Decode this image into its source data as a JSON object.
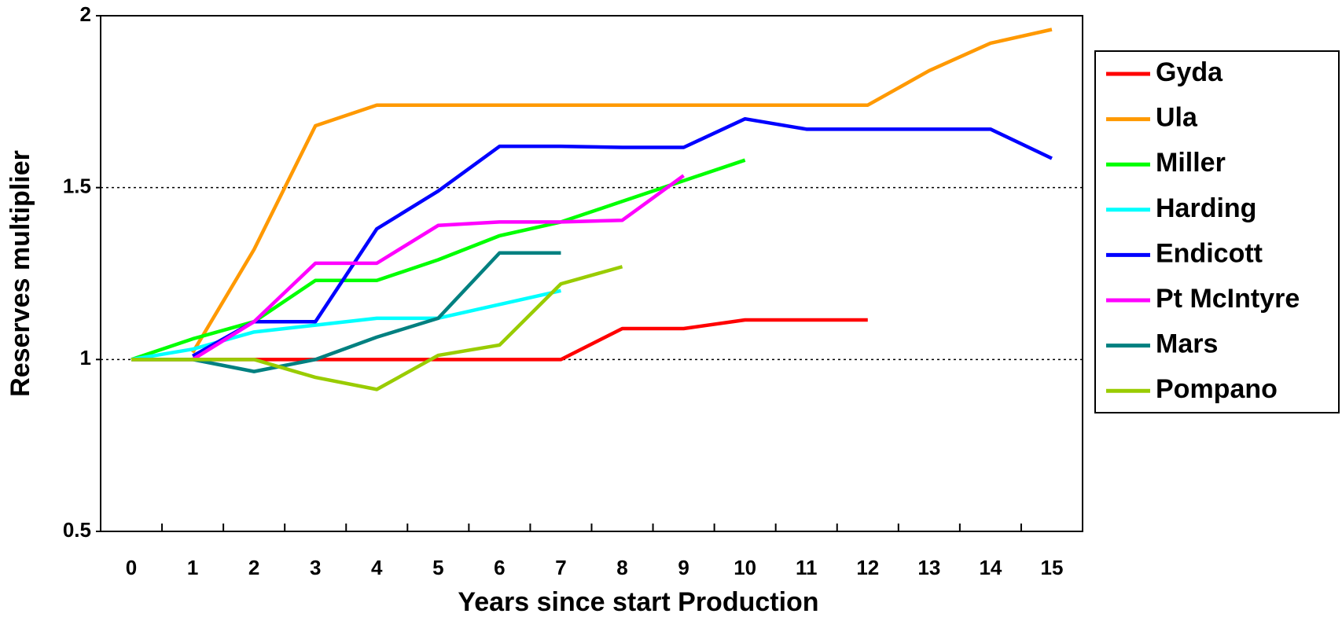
{
  "chart_data": {
    "type": "line",
    "x_label": "Years since start Production",
    "y_label": "Reserves multiplier",
    "categories": [
      "0",
      "1",
      "2",
      "3",
      "4",
      "5",
      "6",
      "7",
      "8",
      "9",
      "10",
      "11",
      "12",
      "13",
      "14",
      "15"
    ],
    "ylim": [
      0.5,
      2
    ],
    "yticks": [
      0.5,
      1,
      1.5,
      2
    ],
    "grid": true,
    "legend": "right",
    "series": [
      {
        "name": "Gyda",
        "color": "#ff0000",
        "values": [
          1,
          1,
          1,
          1,
          1,
          1,
          1,
          1,
          1.09,
          1.09,
          1.115,
          1.115,
          1.115,
          null,
          null,
          null
        ]
      },
      {
        "name": "Ula",
        "color": "#ff9900",
        "values": [
          null,
          1.02,
          1.32,
          1.68,
          1.74,
          1.74,
          1.74,
          1.74,
          1.74,
          1.74,
          1.74,
          1.74,
          1.74,
          1.84,
          1.92,
          1.96
        ]
      },
      {
        "name": "Miller",
        "color": "#00ff00",
        "values": [
          1,
          1.06,
          1.11,
          1.23,
          1.23,
          1.29,
          1.36,
          1.4,
          1.46,
          1.52,
          1.58,
          null,
          null,
          null,
          null,
          null
        ]
      },
      {
        "name": "Harding",
        "color": "#00ffff",
        "values": [
          1,
          1.03,
          1.08,
          1.1,
          1.12,
          1.12,
          1.16,
          1.2,
          null,
          null,
          null,
          null,
          null,
          null,
          null,
          null
        ]
      },
      {
        "name": "Endicott",
        "color": "#0000ff",
        "values": [
          null,
          1.01,
          1.11,
          1.11,
          1.38,
          1.49,
          1.62,
          1.62,
          1.617,
          1.617,
          1.7,
          1.67,
          1.67,
          1.67,
          1.67,
          1.585
        ]
      },
      {
        "name": "Pt McIntyre",
        "color": "#ff00ff",
        "values": [
          null,
          1,
          1.11,
          1.28,
          1.28,
          1.39,
          1.4,
          1.4,
          1.405,
          1.535,
          null,
          null,
          null,
          null,
          null,
          null
        ]
      },
      {
        "name": "Mars",
        "color": "#008080",
        "values": [
          1,
          1,
          0.965,
          1,
          1.065,
          1.12,
          1.31,
          1.31,
          null,
          null,
          null,
          null,
          null,
          null,
          null,
          null
        ]
      },
      {
        "name": "Pompano",
        "color": "#99cc00",
        "values": [
          1,
          1,
          1,
          0.948,
          0.913,
          1.012,
          1.042,
          1.22,
          1.27,
          null,
          null,
          null,
          null,
          null,
          null,
          null
        ]
      }
    ]
  }
}
